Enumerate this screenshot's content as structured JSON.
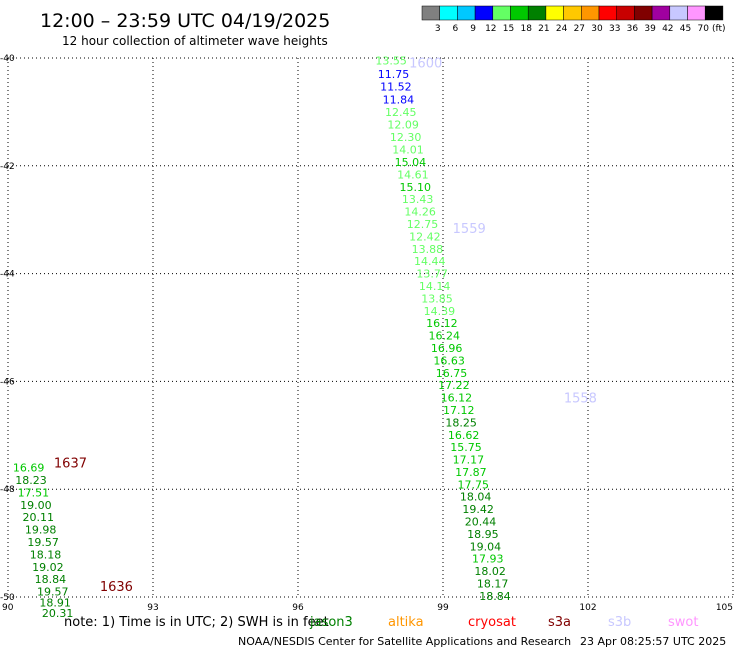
{
  "header": {
    "title": "12:00 – 23:59 UTC 04/19/2025",
    "subtitle": "12 hour collection of altimeter wave heights"
  },
  "legend": {
    "unit_label": "(ft)",
    "swatches": [
      {
        "color": "#808080",
        "label": "3"
      },
      {
        "color": "#00ffff",
        "label": "6"
      },
      {
        "color": "#00c8ff",
        "label": "9"
      },
      {
        "color": "#0000ff",
        "label": "12"
      },
      {
        "color": "#64ff64",
        "label": "15"
      },
      {
        "color": "#00c800",
        "label": "18"
      },
      {
        "color": "#008000",
        "label": "21"
      },
      {
        "color": "#ffff00",
        "label": "24"
      },
      {
        "color": "#ffc800",
        "label": "27"
      },
      {
        "color": "#ff9600",
        "label": "30"
      },
      {
        "color": "#ff0000",
        "label": "33"
      },
      {
        "color": "#c80000",
        "label": "36"
      },
      {
        "color": "#800000",
        "label": "39"
      },
      {
        "color": "#a000a0",
        "label": "42"
      },
      {
        "color": "#c8c8ff",
        "label": "45"
      },
      {
        "color": "#ff96ff",
        "label": "70"
      },
      {
        "color": "#000000",
        "label": ""
      }
    ]
  },
  "chart_data": {
    "type": "scatter",
    "xlim": [
      90,
      105
    ],
    "ylim": [
      -50,
      -40
    ],
    "x_ticks": [
      "90",
      "93",
      "96",
      "99",
      "102",
      "105"
    ],
    "y_ticks": [
      "-40",
      "-42",
      "-44",
      "-46",
      "-48",
      "-50"
    ],
    "x_tick_values": [
      90,
      93,
      96,
      99,
      102,
      105
    ],
    "y_tick_values": [
      -40,
      -42,
      -44,
      -46,
      -48,
      -50
    ],
    "grid": true,
    "track_labels": [
      {
        "text": "1600",
        "lon": 98.3,
        "lat": -40.08,
        "color": "#c8c8ff"
      },
      {
        "text": "1559",
        "lon": 99.2,
        "lat": -43.15,
        "color": "#c8c8ff"
      },
      {
        "text": "1558",
        "lon": 101.5,
        "lat": -46.3,
        "color": "#c8c8ff"
      },
      {
        "text": "1637",
        "lon": 90.95,
        "lat": -47.5,
        "color": "#800000"
      },
      {
        "text": "1636",
        "lon": 91.9,
        "lat": -49.8,
        "color": "#800000"
      }
    ],
    "points": [
      {
        "lon": 97.6,
        "lat": -40.05,
        "v": "13.55",
        "color": "#64ff64"
      },
      {
        "lon": 97.65,
        "lat": -40.3,
        "v": "11.75",
        "color": "#0000ff"
      },
      {
        "lon": 97.7,
        "lat": -40.53,
        "v": "11.52",
        "color": "#0000ff"
      },
      {
        "lon": 97.75,
        "lat": -40.77,
        "v": "11.84",
        "color": "#0000ff"
      },
      {
        "lon": 97.8,
        "lat": -41.0,
        "v": "12.45",
        "color": "#64ff64"
      },
      {
        "lon": 97.85,
        "lat": -41.23,
        "v": "12.09",
        "color": "#64ff64"
      },
      {
        "lon": 97.9,
        "lat": -41.47,
        "v": "12.30",
        "color": "#64ff64"
      },
      {
        "lon": 97.95,
        "lat": -41.7,
        "v": "14.01",
        "color": "#64ff64"
      },
      {
        "lon": 98.0,
        "lat": -41.93,
        "v": "15.04",
        "color": "#00c800"
      },
      {
        "lon": 98.05,
        "lat": -42.16,
        "v": "14.61",
        "color": "#64ff64"
      },
      {
        "lon": 98.1,
        "lat": -42.39,
        "v": "15.10",
        "color": "#00c800"
      },
      {
        "lon": 98.15,
        "lat": -42.62,
        "v": "13.43",
        "color": "#64ff64"
      },
      {
        "lon": 98.2,
        "lat": -42.85,
        "v": "14.26",
        "color": "#64ff64"
      },
      {
        "lon": 98.25,
        "lat": -43.08,
        "v": "12.75",
        "color": "#64ff64"
      },
      {
        "lon": 98.3,
        "lat": -43.31,
        "v": "12.42",
        "color": "#64ff64"
      },
      {
        "lon": 98.35,
        "lat": -43.54,
        "v": "13.88",
        "color": "#64ff64"
      },
      {
        "lon": 98.4,
        "lat": -43.77,
        "v": "14.44",
        "color": "#64ff64"
      },
      {
        "lon": 98.45,
        "lat": -44.0,
        "v": "13.77",
        "color": "#64ff64"
      },
      {
        "lon": 98.5,
        "lat": -44.23,
        "v": "14.14",
        "color": "#64ff64"
      },
      {
        "lon": 98.55,
        "lat": -44.46,
        "v": "13.85",
        "color": "#64ff64"
      },
      {
        "lon": 98.6,
        "lat": -44.69,
        "v": "14.39",
        "color": "#64ff64"
      },
      {
        "lon": 98.65,
        "lat": -44.92,
        "v": "16.12",
        "color": "#00c800"
      },
      {
        "lon": 98.7,
        "lat": -45.15,
        "v": "16.24",
        "color": "#00c800"
      },
      {
        "lon": 98.75,
        "lat": -45.38,
        "v": "16.96",
        "color": "#00c800"
      },
      {
        "lon": 98.8,
        "lat": -45.61,
        "v": "16.63",
        "color": "#00c800"
      },
      {
        "lon": 98.85,
        "lat": -45.84,
        "v": "16.75",
        "color": "#00c800"
      },
      {
        "lon": 98.9,
        "lat": -46.07,
        "v": "17.22",
        "color": "#00c800"
      },
      {
        "lon": 98.95,
        "lat": -46.3,
        "v": "16.12",
        "color": "#00c800"
      },
      {
        "lon": 99.0,
        "lat": -46.53,
        "v": "17.12",
        "color": "#00c800"
      },
      {
        "lon": 99.05,
        "lat": -46.76,
        "v": "18.25",
        "color": "#008000"
      },
      {
        "lon": 99.1,
        "lat": -46.99,
        "v": "16.62",
        "color": "#00c800"
      },
      {
        "lon": 99.15,
        "lat": -47.22,
        "v": "15.75",
        "color": "#00c800"
      },
      {
        "lon": 99.2,
        "lat": -47.45,
        "v": "17.17",
        "color": "#00c800"
      },
      {
        "lon": 99.25,
        "lat": -47.68,
        "v": "17.87",
        "color": "#00c800"
      },
      {
        "lon": 99.3,
        "lat": -47.91,
        "v": "17.75",
        "color": "#00c800"
      },
      {
        "lon": 99.35,
        "lat": -48.14,
        "v": "18.04",
        "color": "#008000"
      },
      {
        "lon": 99.4,
        "lat": -48.37,
        "v": "19.42",
        "color": "#008000"
      },
      {
        "lon": 99.45,
        "lat": -48.6,
        "v": "20.44",
        "color": "#008000"
      },
      {
        "lon": 99.5,
        "lat": -48.83,
        "v": "18.95",
        "color": "#008000"
      },
      {
        "lon": 99.55,
        "lat": -49.06,
        "v": "19.04",
        "color": "#008000"
      },
      {
        "lon": 99.6,
        "lat": -49.29,
        "v": "17.93",
        "color": "#00c800"
      },
      {
        "lon": 99.65,
        "lat": -49.52,
        "v": "18.02",
        "color": "#008000"
      },
      {
        "lon": 99.7,
        "lat": -49.75,
        "v": "18.17",
        "color": "#008000"
      },
      {
        "lon": 99.75,
        "lat": -49.98,
        "v": "18.84",
        "color": "#008000"
      },
      {
        "lon": 90.1,
        "lat": -47.6,
        "v": "16.69",
        "color": "#00c800"
      },
      {
        "lon": 90.15,
        "lat": -47.83,
        "v": "18.23",
        "color": "#008000"
      },
      {
        "lon": 90.2,
        "lat": -48.06,
        "v": "17.51",
        "color": "#00c800"
      },
      {
        "lon": 90.25,
        "lat": -48.29,
        "v": "19.00",
        "color": "#008000"
      },
      {
        "lon": 90.3,
        "lat": -48.52,
        "v": "20.11",
        "color": "#008000"
      },
      {
        "lon": 90.35,
        "lat": -48.75,
        "v": "19.98",
        "color": "#008000"
      },
      {
        "lon": 90.4,
        "lat": -48.98,
        "v": "19.57",
        "color": "#008000"
      },
      {
        "lon": 90.45,
        "lat": -49.21,
        "v": "18.18",
        "color": "#008000"
      },
      {
        "lon": 90.5,
        "lat": -49.44,
        "v": "19.02",
        "color": "#008000"
      },
      {
        "lon": 90.55,
        "lat": -49.67,
        "v": "18.84",
        "color": "#008000"
      },
      {
        "lon": 90.6,
        "lat": -49.9,
        "v": "19.57",
        "color": "#008000"
      },
      {
        "lon": 90.65,
        "lat": -50.1,
        "v": "18.91",
        "color": "#008000"
      },
      {
        "lon": 90.7,
        "lat": -50.3,
        "v": "20.31",
        "color": "#008000"
      }
    ]
  },
  "footer": {
    "note_prefix": "note:  1) Time is in UTC; 2) SWH is in feet",
    "satellites": [
      {
        "name": "jason3",
        "color": "#008000"
      },
      {
        "name": "altika",
        "color": "#ff9600"
      },
      {
        "name": "cryosat",
        "color": "#ff0000"
      },
      {
        "name": "s3a",
        "color": "#800000"
      },
      {
        "name": "s3b",
        "color": "#c8c8ff"
      },
      {
        "name": "swot",
        "color": "#ff96ff"
      }
    ],
    "credit": "NOAA/NESDIS Center for Satellite Applications and Research",
    "timestamp": "23 Apr 08:25:57 UTC 2025"
  }
}
